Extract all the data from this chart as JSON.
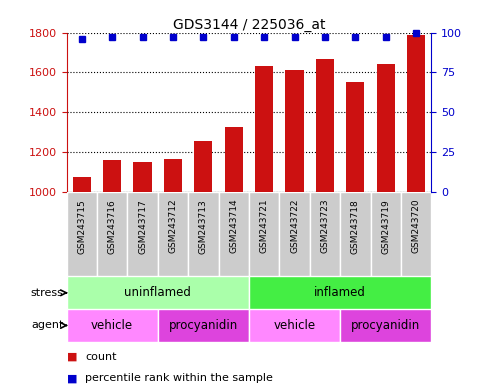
{
  "title": "GDS3144 / 225036_at",
  "samples": [
    "GSM243715",
    "GSM243716",
    "GSM243717",
    "GSM243712",
    "GSM243713",
    "GSM243714",
    "GSM243721",
    "GSM243722",
    "GSM243723",
    "GSM243718",
    "GSM243719",
    "GSM243720"
  ],
  "counts": [
    1075,
    1162,
    1152,
    1165,
    1255,
    1325,
    1635,
    1610,
    1670,
    1550,
    1645,
    1790
  ],
  "percentile_ranks": [
    96,
    97,
    97,
    97,
    97,
    97,
    97,
    97,
    97,
    97,
    97,
    100
  ],
  "ylim_left": [
    1000,
    1800
  ],
  "ylim_right": [
    0,
    100
  ],
  "yticks_left": [
    1000,
    1200,
    1400,
    1600,
    1800
  ],
  "yticks_right": [
    0,
    25,
    50,
    75,
    100
  ],
  "bar_color": "#cc1111",
  "dot_color": "#0000cc",
  "bar_width": 0.6,
  "stress_groups": [
    {
      "label": "uninflamed",
      "start": 0,
      "end": 6,
      "color": "#aaffaa"
    },
    {
      "label": "inflamed",
      "start": 6,
      "end": 12,
      "color": "#44ee44"
    }
  ],
  "agent_groups": [
    {
      "label": "vehicle",
      "start": 0,
      "end": 3,
      "color": "#ff88ff"
    },
    {
      "label": "procyanidin",
      "start": 3,
      "end": 6,
      "color": "#dd44dd"
    },
    {
      "label": "vehicle",
      "start": 6,
      "end": 9,
      "color": "#ff88ff"
    },
    {
      "label": "procyanidin",
      "start": 9,
      "end": 12,
      "color": "#dd44dd"
    }
  ],
  "legend_items": [
    {
      "label": "count",
      "color": "#cc1111"
    },
    {
      "label": "percentile rank within the sample",
      "color": "#0000cc"
    }
  ],
  "title_fontsize": 10,
  "axis_label_color_left": "#cc1111",
  "axis_label_color_right": "#0000cc",
  "sample_box_color": "#cccccc",
  "sample_box_edgecolor": "#ffffff",
  "sample_text_fontsize": 6.5
}
